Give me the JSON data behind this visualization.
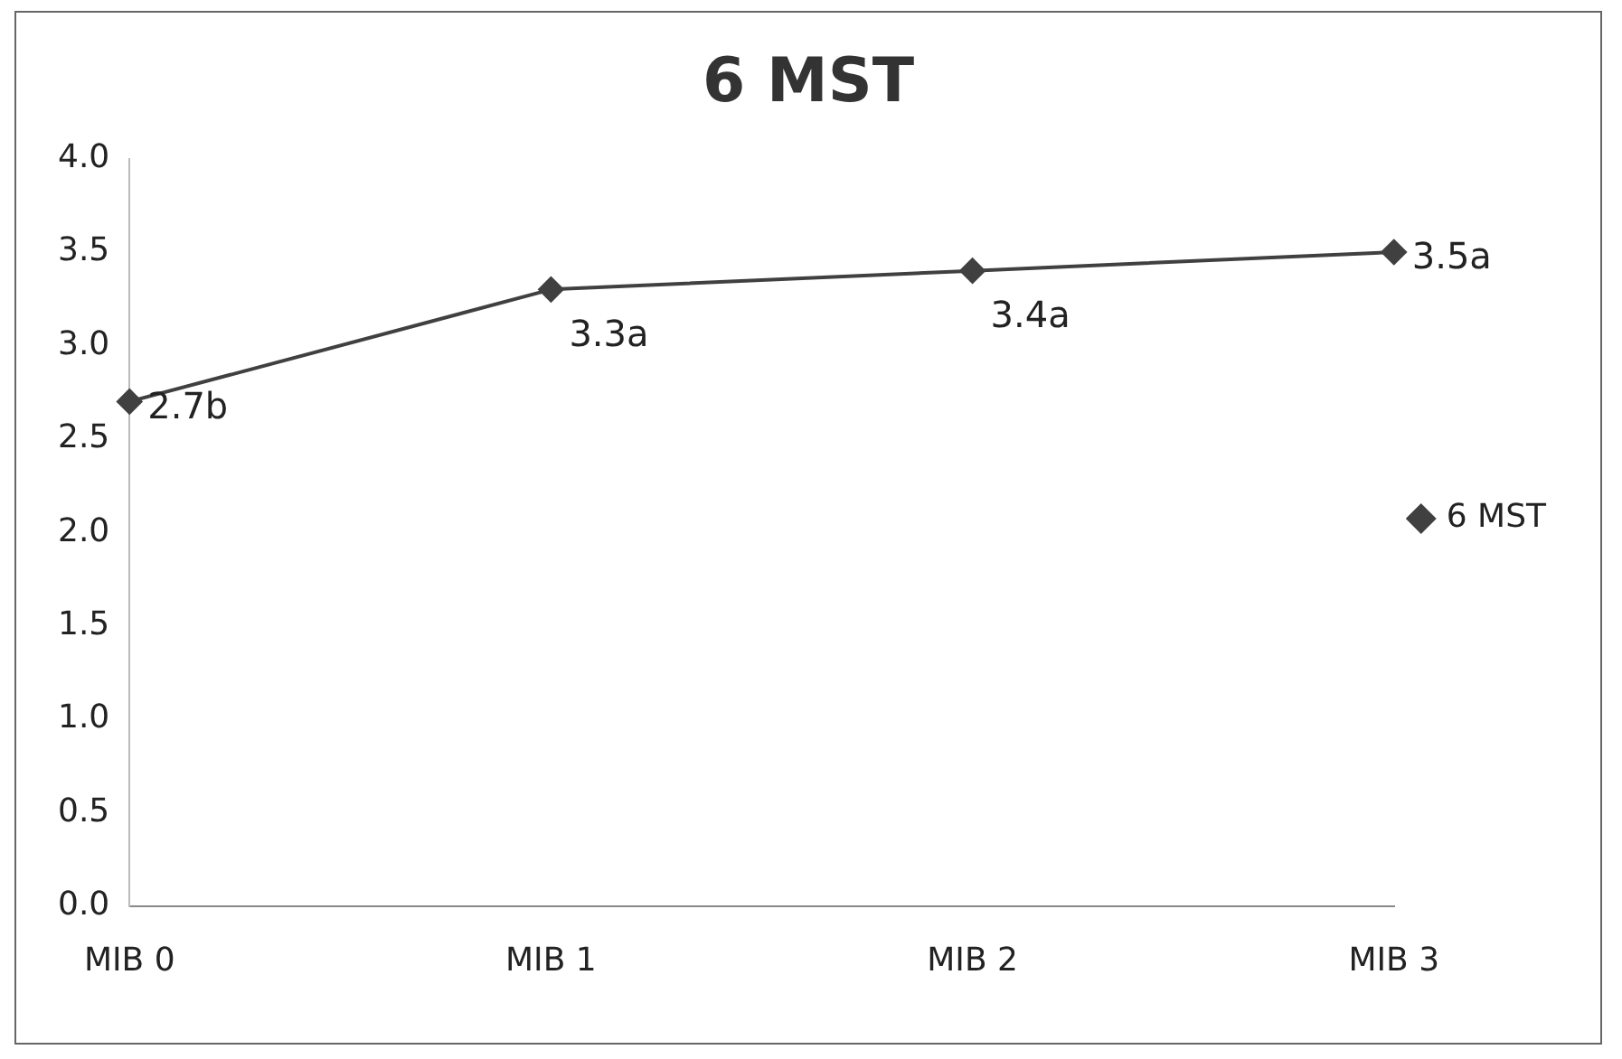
{
  "chart_data": {
    "type": "line",
    "title": "6 MST",
    "categories": [
      "MIB 0",
      "MIB 1",
      "MIB 2",
      "MIB 3"
    ],
    "series": [
      {
        "name": "6 MST",
        "color": "#404040",
        "values": [
          2.7,
          3.3,
          3.4,
          3.5
        ],
        "value_labels": [
          "2.7b",
          "3.3a",
          "3.4a",
          "3.5a"
        ]
      }
    ],
    "ylim": [
      0,
      4
    ],
    "yticks": [
      {
        "value": 0,
        "label": "0.0"
      },
      0.5,
      {
        "value": 1,
        "label": "1.0"
      },
      1.5,
      {
        "value": 2,
        "label": "2.0"
      },
      2.5,
      {
        "value": 3,
        "label": "3.0"
      },
      3.5,
      {
        "value": 4,
        "label": "4.0"
      }
    ],
    "grid": false,
    "legend": "right",
    "marker": "diamond",
    "line_style": "solid"
  }
}
